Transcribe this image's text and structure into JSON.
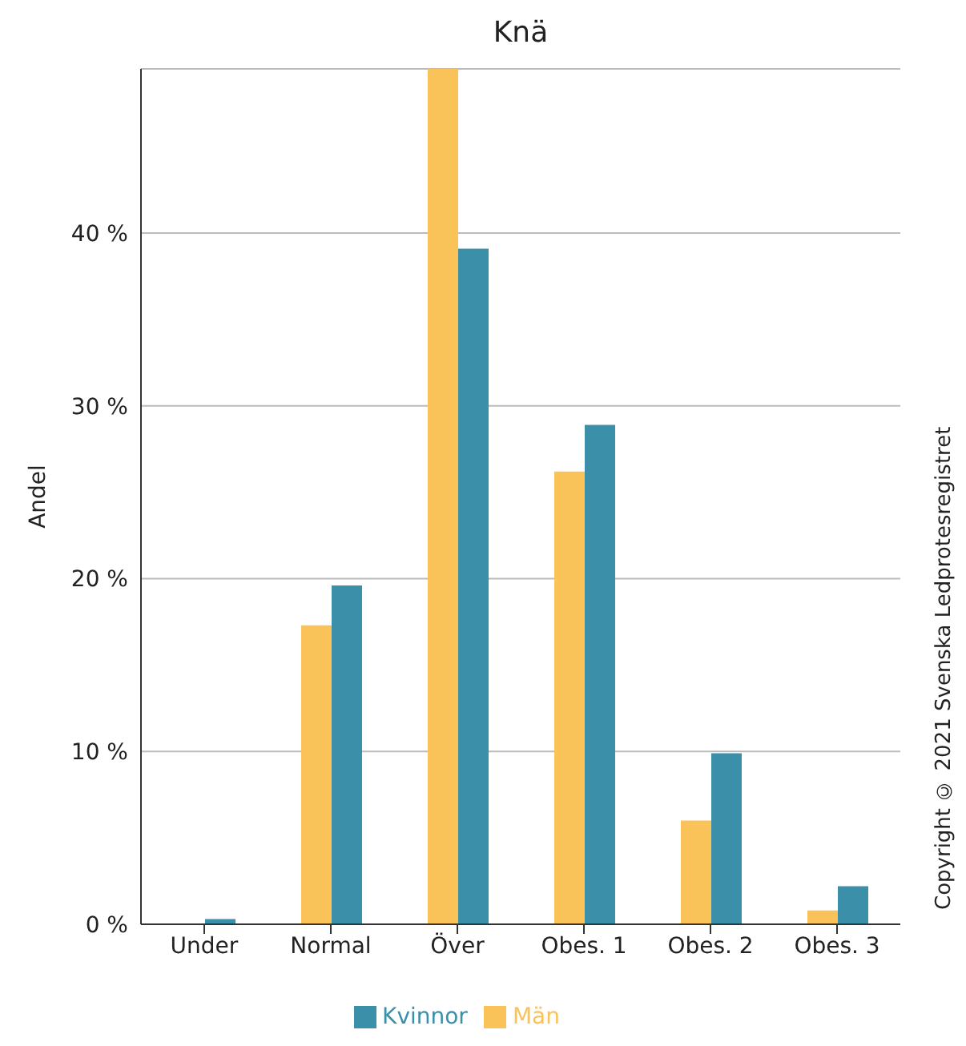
{
  "chart_data": {
    "type": "bar",
    "title": "Knä",
    "ylabel": "Andel",
    "categories": [
      "Under",
      "Normal",
      "Över",
      "Obes. 1",
      "Obes. 2",
      "Obes. 3"
    ],
    "series": [
      {
        "name": "Män",
        "color": "#f9c35a",
        "values": [
          0,
          17.3,
          49.5,
          26.2,
          6.0,
          0.8
        ]
      },
      {
        "name": "Kvinnor",
        "color": "#3b8fa8",
        "values": [
          0.3,
          19.6,
          39.1,
          28.9,
          9.9,
          2.2
        ]
      }
    ],
    "ylim": [
      0,
      49.5
    ],
    "yticks": [
      {
        "value": 0,
        "label": "0 %"
      },
      {
        "value": 10,
        "label": "10 %"
      },
      {
        "value": 20,
        "label": "20 %"
      },
      {
        "value": 30,
        "label": "30 %"
      },
      {
        "value": 40,
        "label": "40 %"
      }
    ],
    "grid": "y",
    "legend": "bottom",
    "annotations": [
      "Copyright © 2021 Svenska Ledprotesregistret"
    ]
  }
}
